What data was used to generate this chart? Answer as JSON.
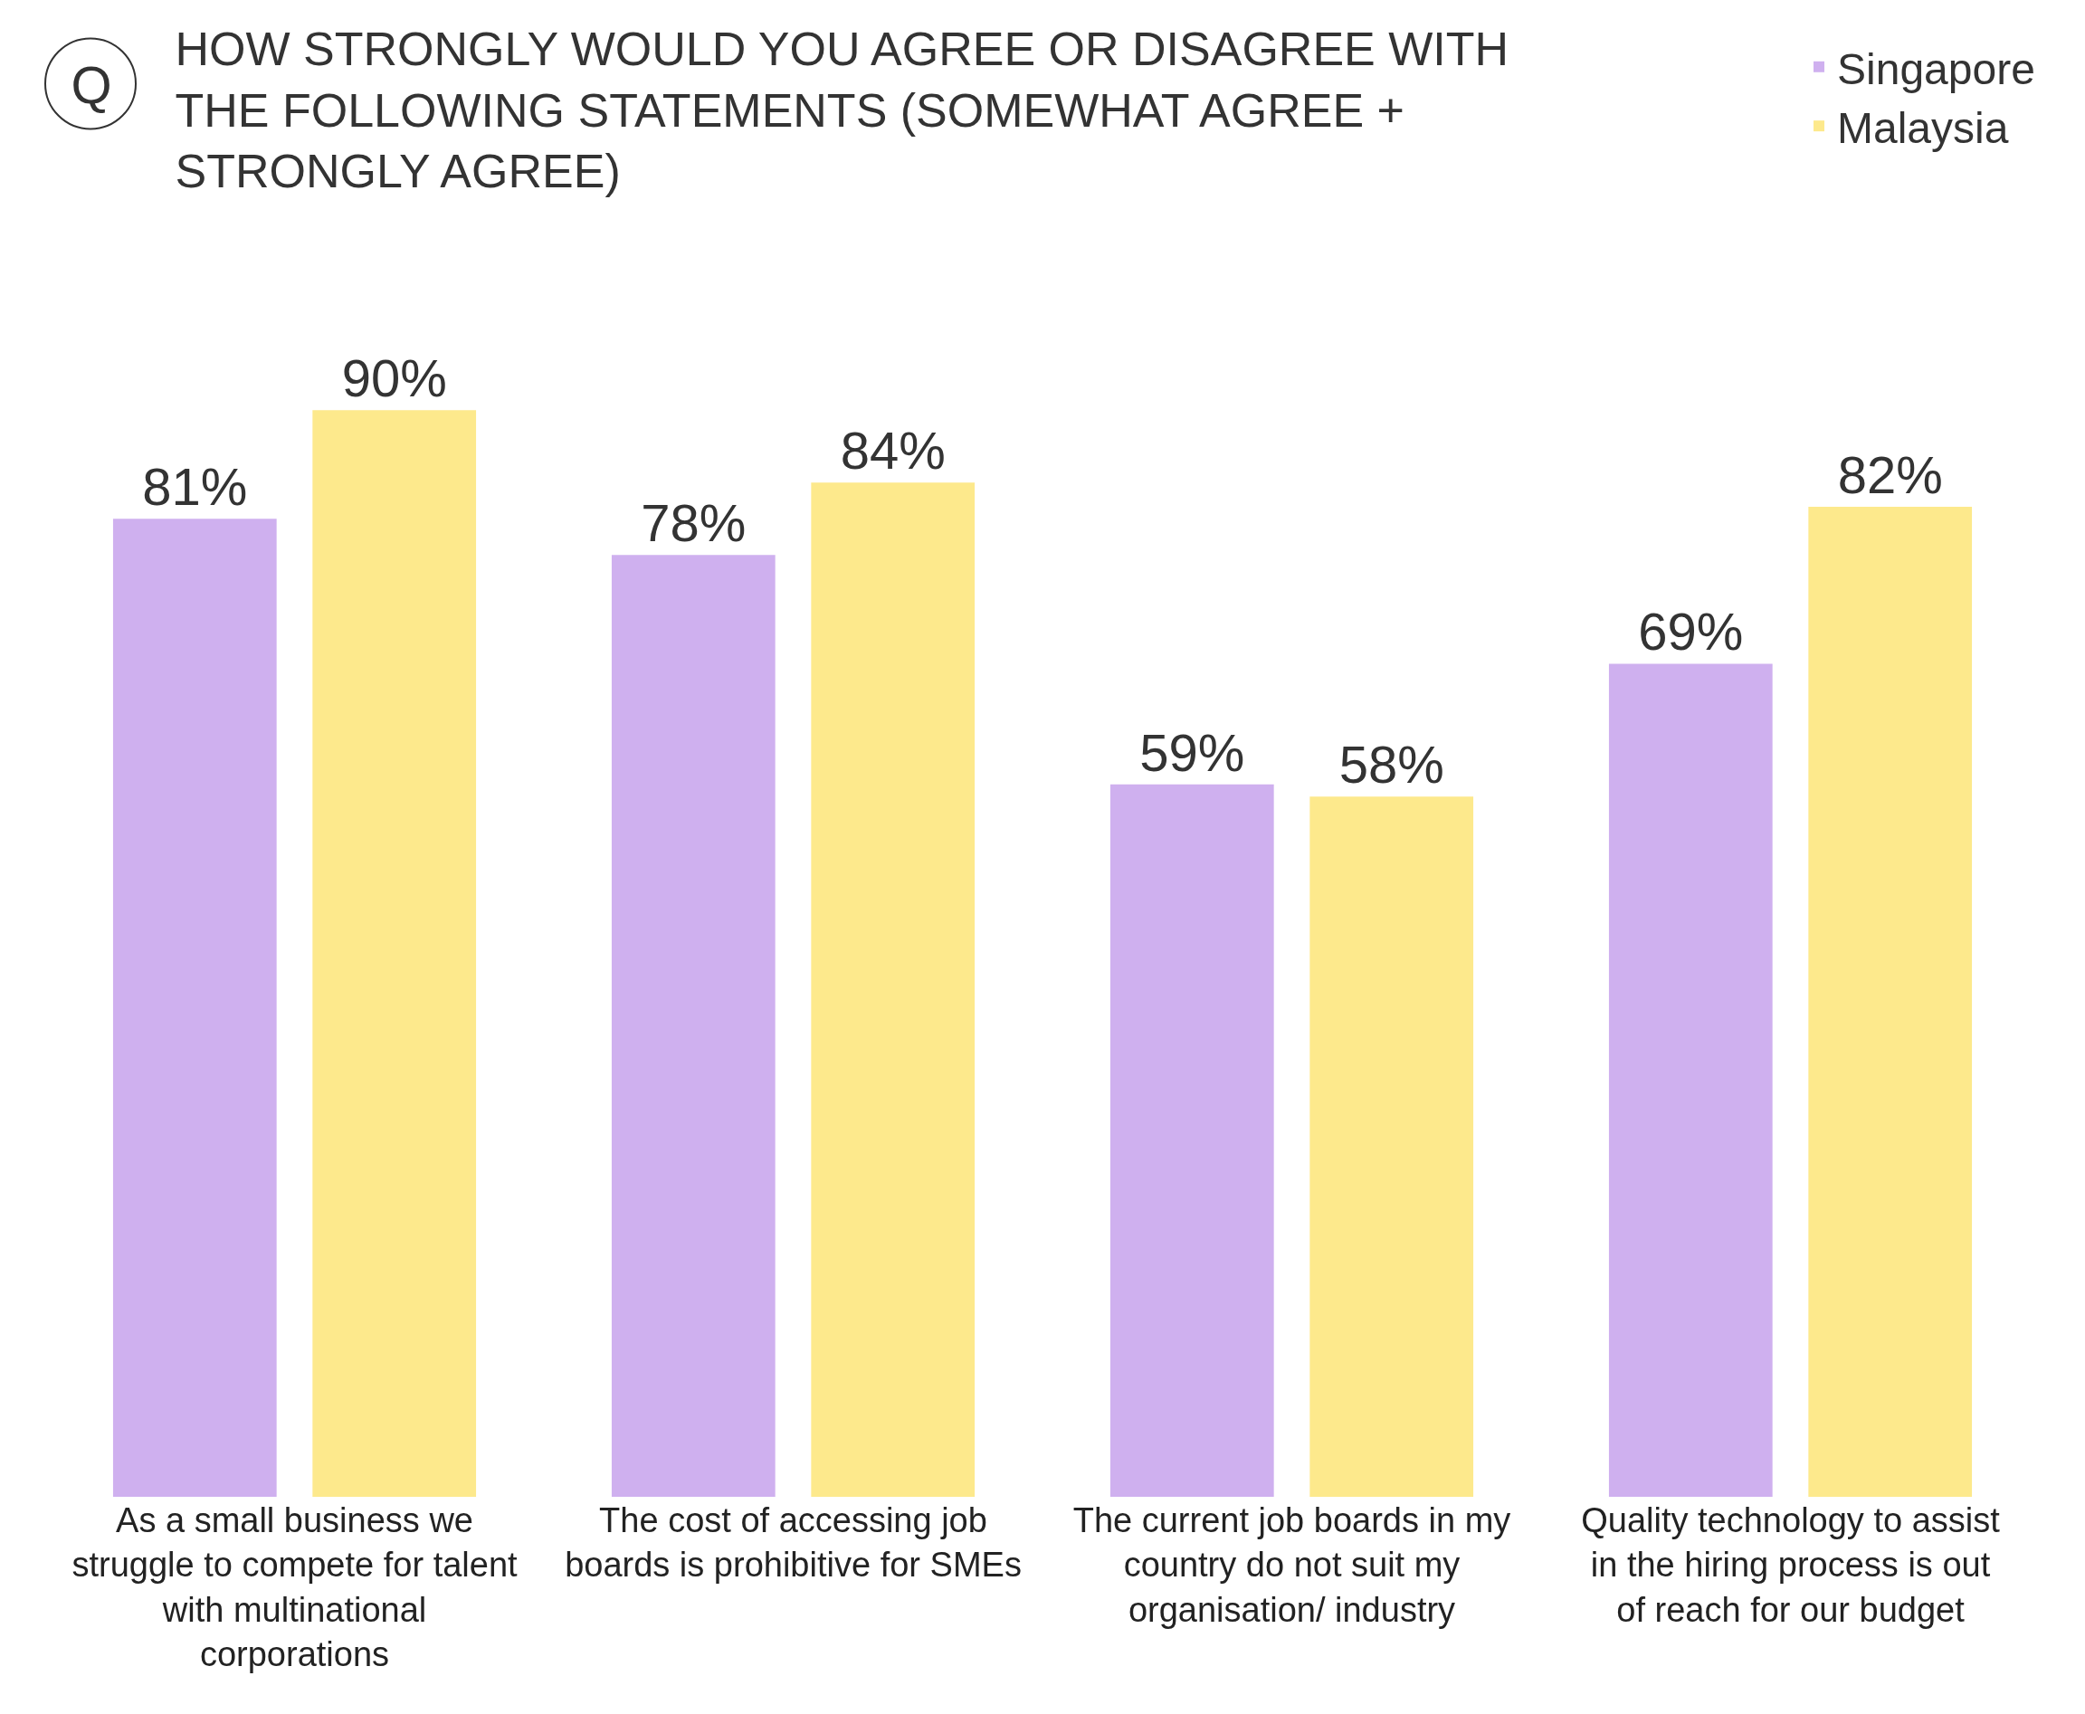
{
  "chart_data": {
    "type": "bar",
    "title": "HOW STRONGLY WOULD YOU AGREE OR DISAGREE WITH THE FOLLOWING STATEMENTS (SOMEWHAT AGREE + STRONGLY AGREE)",
    "annotations": [
      "Q"
    ],
    "categories": [
      "As a small business we struggle to compete for talent with multinational corporations",
      "The cost of accessing job boards is prohibitive for SMEs",
      "The current job boards in my country do not suit my organisation/ industry",
      "Quality technology to assist in the hiring process is out of reach for our budget"
    ],
    "series": [
      {
        "name": "Singapore",
        "color": "#cfb0ef",
        "values": [
          81,
          78,
          59,
          69
        ],
        "value_labels": [
          "81%",
          "78%",
          "59%",
          "69%"
        ]
      },
      {
        "name": "Malaysia",
        "color": "#fde98c",
        "values": [
          90,
          84,
          58,
          82
        ],
        "value_labels": [
          "90%",
          "84%",
          "58%",
          "82%"
        ]
      }
    ],
    "legend": "top right"
  }
}
